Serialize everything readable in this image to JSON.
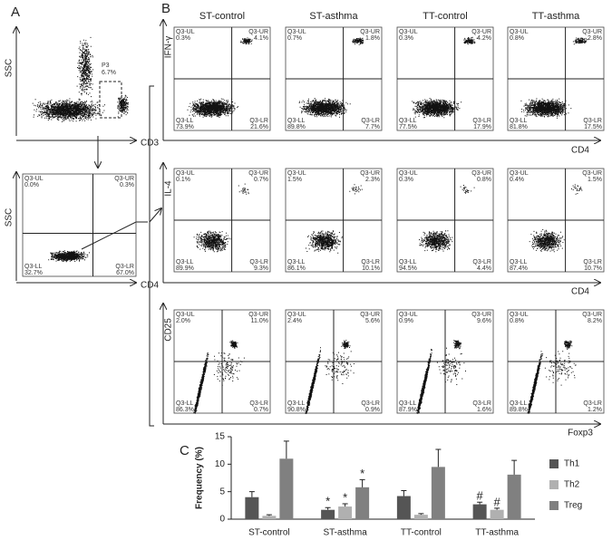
{
  "panel_labels": [
    "A",
    "B",
    "C"
  ],
  "panel_a": {
    "gate_plot": {
      "y_label": "SSC",
      "x_label": "CD3",
      "gate_name": "P3",
      "gate_value": "6.7%"
    },
    "quadrant_plot": {
      "y_label": "SSC",
      "x_label": "CD4",
      "values": [
        "0.0%",
        "0.3%",
        "32.7%",
        "67.0%"
      ]
    }
  },
  "quadrant_labels": [
    "Q3-UL",
    "Q3-UR",
    "Q3-LL",
    "Q3-LR"
  ],
  "panel_b": {
    "columns": [
      "ST-control",
      "ST-asthma",
      "TT-control",
      "TT-asthma"
    ],
    "rows": [
      {
        "y_label": "IFN-γ",
        "x_label": "CD4",
        "plots": [
          [
            "0.3%",
            "4.1%",
            "73.9%",
            "21.6%"
          ],
          [
            "0.7%",
            "1.8%",
            "89.8%",
            "7.7%"
          ],
          [
            "0.3%",
            "4.2%",
            "77.5%",
            "17.9%"
          ],
          [
            "0.8%",
            "2.8%",
            "81.8%",
            "17.5%"
          ]
        ]
      },
      {
        "y_label": "IL-4",
        "x_label": "CD4",
        "plots": [
          [
            "0.1%",
            "0.7%",
            "89.9%",
            "9.3%"
          ],
          [
            "1.5%",
            "2.3%",
            "86.1%",
            "10.1%"
          ],
          [
            "0.3%",
            "0.8%",
            "94.5%",
            "4.4%"
          ],
          [
            "0.4%",
            "1.5%",
            "87.4%",
            "10.7%"
          ]
        ]
      },
      {
        "y_label": "CD25",
        "x_label": "Foxp3",
        "plots": [
          [
            "2.0%",
            "11.0%",
            "86.3%",
            "0.7%"
          ],
          [
            "2.4%",
            "5.6%",
            "90.8%",
            "0.9%"
          ],
          [
            "0.9%",
            "9.6%",
            "87.9%",
            "1.6%"
          ],
          [
            "0.8%",
            "8.2%",
            "89.8%",
            "1.2%"
          ]
        ]
      }
    ]
  },
  "chart_data": {
    "type": "bar",
    "y_label": "Frequency (%)",
    "categories": [
      "ST-control",
      "ST-asthma",
      "TT-control",
      "TT-asthma"
    ],
    "series": [
      {
        "name": "Th1",
        "color": "#555555",
        "values": [
          4.0,
          1.7,
          4.2,
          2.7
        ],
        "errors": [
          1.0,
          0.4,
          1.0,
          0.4
        ],
        "markers": [
          null,
          "*",
          null,
          "#"
        ]
      },
      {
        "name": "Th2",
        "color": "#b0b0b0",
        "values": [
          0.6,
          2.3,
          0.8,
          1.7
        ],
        "errors": [
          0.2,
          0.5,
          0.2,
          0.3
        ],
        "markers": [
          null,
          "*",
          null,
          "#"
        ]
      },
      {
        "name": "Treg",
        "color": "#808080",
        "values": [
          11.0,
          5.8,
          9.5,
          8.1
        ],
        "errors": [
          3.2,
          1.4,
          3.2,
          2.6
        ],
        "markers": [
          null,
          "*",
          null,
          null
        ]
      }
    ],
    "ylim": [
      0,
      15
    ],
    "yticks": [
      0,
      5,
      10,
      15
    ],
    "legend": "right"
  }
}
